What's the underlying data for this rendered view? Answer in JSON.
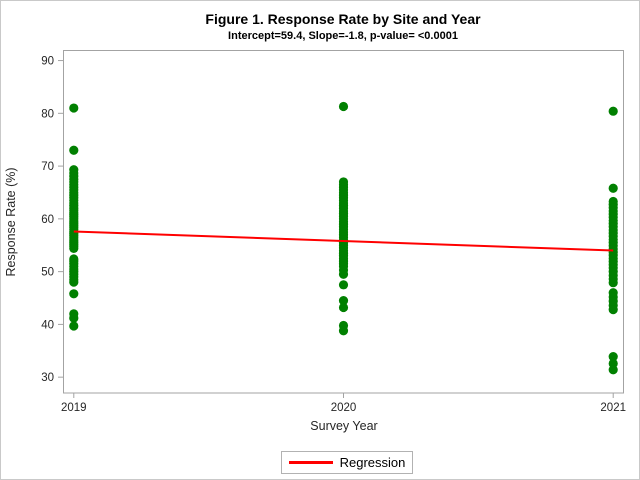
{
  "chart_data": {
    "type": "scatter",
    "title": "Figure 1. Response Rate by Site and Year",
    "subtitle": "Intercept=59.4, Slope=-1.8, p-value= <0.0001",
    "xlabel": "Survey Year",
    "ylabel": "Response Rate (%)",
    "x_ticks": [
      2019,
      2020,
      2021
    ],
    "y_ticks": [
      30,
      40,
      50,
      60,
      70,
      80,
      90
    ],
    "xlim": [
      2018.96,
      2021.04
    ],
    "ylim": [
      27,
      92
    ],
    "grid": false,
    "marker": {
      "color": "#018001",
      "radius": 4.6,
      "shape": "circle"
    },
    "series": [
      {
        "name": "2019",
        "x": 2019,
        "values": [
          81.0,
          73.0,
          69.3,
          68.7,
          68.1,
          67.5,
          67.0,
          66.5,
          66.0,
          65.5,
          65.0,
          64.5,
          64.0,
          63.5,
          63.0,
          62.5,
          62.0,
          61.6,
          61.2,
          60.8,
          60.4,
          60.0,
          59.6,
          59.2,
          58.8,
          58.4,
          58.0,
          57.6,
          57.2,
          56.8,
          56.4,
          56.0,
          55.6,
          55.2,
          54.8,
          54.4,
          52.4,
          52.0,
          51.5,
          51.0,
          50.5,
          50.0,
          49.5,
          49.0,
          48.5,
          48.0,
          45.8,
          42.0,
          41.2,
          39.7
        ]
      },
      {
        "name": "2020",
        "x": 2020,
        "values": [
          81.3,
          67.0,
          66.5,
          66.0,
          65.5,
          65.0,
          64.5,
          64.0,
          63.5,
          63.0,
          62.5,
          62.0,
          61.5,
          61.0,
          60.5,
          60.0,
          59.5,
          59.0,
          58.5,
          58.0,
          57.5,
          57.0,
          56.5,
          56.0,
          55.5,
          55.0,
          54.5,
          54.0,
          53.5,
          53.0,
          52.5,
          52.0,
          51.5,
          51.0,
          50.3,
          49.5,
          47.5,
          44.5,
          43.2,
          39.8,
          38.8
        ]
      },
      {
        "name": "2021",
        "x": 2021,
        "values": [
          80.4,
          65.8,
          63.3,
          62.7,
          62.1,
          61.5,
          60.9,
          60.3,
          59.7,
          59.1,
          58.5,
          57.9,
          57.3,
          56.7,
          56.1,
          55.5,
          54.9,
          54.3,
          53.7,
          53.1,
          52.5,
          51.9,
          51.3,
          50.7,
          50.0,
          49.3,
          48.6,
          47.9,
          46.0,
          45.2,
          44.4,
          43.6,
          42.8,
          33.9,
          32.6,
          31.4
        ]
      }
    ],
    "regression": {
      "label": "Regression",
      "x": [
        2019,
        2021
      ],
      "y": [
        57.6,
        54.0
      ],
      "color": "#ff0000",
      "intercept": 59.4,
      "slope": -1.8,
      "p_value": "<0.0001"
    },
    "legend": {
      "label": "Regression",
      "position": "bottom"
    },
    "colors": {
      "frame": "#a3a3a3",
      "tick": "#a3a3a3",
      "text": "#262626",
      "point": "#018001",
      "line": "#ff0000"
    }
  }
}
